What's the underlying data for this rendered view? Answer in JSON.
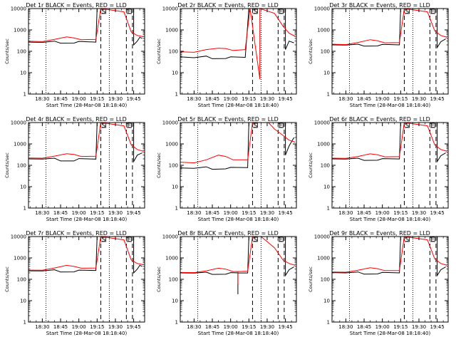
{
  "chart_data": {
    "type": "line",
    "scale": "log",
    "ylim": [
      1,
      10000
    ],
    "ytick_labels": [
      "1",
      "10",
      "100",
      "1000",
      "10000"
    ],
    "xtick_labels": [
      "18:30",
      "18:45",
      "19:00",
      "19:15",
      "19:30",
      "19:45"
    ],
    "xtick_labels_alt": [
      "18:30",
      "18:45",
      "19:00",
      "19:15",
      "19:30",
      "19:45"
    ],
    "xtick_values": [
      30,
      45,
      60,
      75,
      90,
      105
    ],
    "xlim": [
      18.67,
      114
    ],
    "grid": false,
    "series_colors": [
      "#000000",
      "#ff0000"
    ],
    "panels": [
      {
        "title": "Det 1r BLACK = Events, RED = LLD",
        "xlabel": "Start Time (28-Mar-08 18:18:40)",
        "ylabel": "Counts/sec",
        "dotted_x": [
          33,
          85
        ],
        "dashed_x": [
          78,
          99,
          104
        ],
        "flag_labels": [
          "S",
          "E"
        ],
        "black": [
          [
            18.67,
            270
          ],
          [
            30,
            262
          ],
          [
            40,
            300
          ],
          [
            45,
            240
          ],
          [
            56,
            242
          ],
          [
            60,
            290
          ],
          [
            74,
            270
          ],
          [
            75,
            10000
          ],
          [
            105,
            10000
          ],
          [
            105,
            200
          ],
          [
            108,
            300
          ],
          [
            110,
            450
          ],
          [
            112,
            400
          ]
        ],
        "red": [
          [
            18.67,
            295
          ],
          [
            30,
            285
          ],
          [
            40,
            360
          ],
          [
            50,
            470
          ],
          [
            56,
            420
          ],
          [
            62,
            350
          ],
          [
            74,
            360
          ],
          [
            78,
            10000
          ],
          [
            97,
            7000
          ],
          [
            103,
            800
          ],
          [
            108,
            550
          ],
          [
            113,
            480
          ]
        ]
      },
      {
        "title": "Det 2r BLACK = Events, RED = LLD",
        "xlabel": "Start Time (28-Mar-08 18:18:40)",
        "ylabel": "Counts/sec",
        "dotted_x": [
          33,
          85
        ],
        "dashed_x": [
          78,
          99,
          104
        ],
        "flag_labels": [
          "S",
          "E"
        ],
        "black": [
          [
            18.67,
            55
          ],
          [
            30,
            50
          ],
          [
            40,
            60
          ],
          [
            45,
            45
          ],
          [
            56,
            46
          ],
          [
            60,
            55
          ],
          [
            72,
            52
          ],
          [
            75,
            10000
          ],
          [
            105,
            10000
          ],
          [
            105,
            120
          ],
          [
            108,
            300
          ],
          [
            112,
            250
          ]
        ],
        "red": [
          [
            18.67,
            95
          ],
          [
            30,
            90
          ],
          [
            40,
            120
          ],
          [
            50,
            140
          ],
          [
            56,
            135
          ],
          [
            62,
            110
          ],
          [
            72,
            120
          ],
          [
            76,
            10000
          ],
          [
            84,
            5
          ],
          [
            84,
            10000
          ],
          [
            96,
            6000
          ],
          [
            103,
            1500
          ],
          [
            108,
            700
          ],
          [
            113,
            500
          ]
        ]
      },
      {
        "title": "Det 3r BLACK = Events, RED = LLD",
        "xlabel": "Start Time (28-Mar-08 18:18:40)",
        "ylabel": "Counts/sec",
        "dotted_x": [
          33,
          85
        ],
        "dashed_x": [
          78,
          99,
          104
        ],
        "flag_labels": [
          "S",
          "E"
        ],
        "black": [
          [
            18.67,
            200
          ],
          [
            30,
            195
          ],
          [
            40,
            215
          ],
          [
            45,
            175
          ],
          [
            56,
            178
          ],
          [
            60,
            210
          ],
          [
            74,
            200
          ],
          [
            75,
            10000
          ],
          [
            105,
            10000
          ],
          [
            105,
            150
          ],
          [
            108,
            280
          ],
          [
            112,
            380
          ]
        ],
        "red": [
          [
            18.67,
            215
          ],
          [
            30,
            205
          ],
          [
            40,
            260
          ],
          [
            50,
            350
          ],
          [
            56,
            310
          ],
          [
            62,
            250
          ],
          [
            74,
            255
          ],
          [
            78,
            10000
          ],
          [
            97,
            7000
          ],
          [
            103,
            900
          ],
          [
            108,
            550
          ],
          [
            113,
            450
          ]
        ]
      },
      {
        "title": "Det 4r BLACK = Events, RED = LLD",
        "xlabel": "Start Time (28-Mar-08 18:18:40)",
        "ylabel": "Counts/sec",
        "dotted_x": [
          33,
          85
        ],
        "dashed_x": [
          78,
          99,
          104
        ],
        "flag_labels": [
          "S",
          "E"
        ],
        "black": [
          [
            18.67,
            200
          ],
          [
            30,
            195
          ],
          [
            40,
            215
          ],
          [
            45,
            160
          ],
          [
            56,
            160
          ],
          [
            60,
            205
          ],
          [
            74,
            195
          ],
          [
            75,
            10000
          ],
          [
            105,
            10000
          ],
          [
            105,
            150
          ],
          [
            108,
            300
          ],
          [
            112,
            380
          ]
        ],
        "red": [
          [
            18.67,
            220
          ],
          [
            30,
            215
          ],
          [
            40,
            270
          ],
          [
            50,
            350
          ],
          [
            56,
            320
          ],
          [
            62,
            260
          ],
          [
            74,
            265
          ],
          [
            78,
            10000
          ],
          [
            97,
            7000
          ],
          [
            103,
            900
          ],
          [
            108,
            550
          ],
          [
            113,
            450
          ]
        ]
      },
      {
        "title": "Det 5r BLACK = Events, RED = LLD",
        "xlabel": "Start Time (28-Mar-08 18:18:40)",
        "ylabel": "Counts/sec",
        "dotted_x": [
          33,
          85
        ],
        "dashed_x": [
          78,
          99,
          104
        ],
        "flag_labels": [
          "S",
          "E"
        ],
        "black": [
          [
            18.67,
            75
          ],
          [
            30,
            72
          ],
          [
            40,
            85
          ],
          [
            45,
            65
          ],
          [
            56,
            68
          ],
          [
            60,
            80
          ],
          [
            74,
            78
          ],
          [
            75,
            10000
          ],
          [
            105,
            10000
          ],
          [
            105,
            300
          ],
          [
            108,
            800
          ],
          [
            112,
            2000
          ]
        ],
        "red": [
          [
            18.67,
            140
          ],
          [
            30,
            130
          ],
          [
            40,
            180
          ],
          [
            50,
            300
          ],
          [
            56,
            260
          ],
          [
            62,
            180
          ],
          [
            74,
            180
          ],
          [
            78,
            10000
          ],
          [
            91,
            10000
          ],
          [
            96,
            5000
          ],
          [
            103,
            2500
          ],
          [
            108,
            1500
          ],
          [
            113,
            1200
          ]
        ]
      },
      {
        "title": "Det 6r BLACK = Events, RED = LLD",
        "xlabel": "Start Time (28-Mar-08 18:18:40)",
        "ylabel": "Counts/sec",
        "dotted_x": [
          33,
          85
        ],
        "dashed_x": [
          78,
          99,
          104
        ],
        "flag_labels": [
          "S",
          "E"
        ],
        "black": [
          [
            18.67,
            200
          ],
          [
            30,
            195
          ],
          [
            40,
            215
          ],
          [
            45,
            170
          ],
          [
            56,
            172
          ],
          [
            60,
            205
          ],
          [
            74,
            198
          ],
          [
            75,
            10000
          ],
          [
            105,
            10000
          ],
          [
            105,
            150
          ],
          [
            108,
            280
          ],
          [
            112,
            380
          ]
        ],
        "red": [
          [
            18.67,
            215
          ],
          [
            30,
            210
          ],
          [
            40,
            260
          ],
          [
            50,
            345
          ],
          [
            56,
            310
          ],
          [
            62,
            250
          ],
          [
            74,
            255
          ],
          [
            78,
            10000
          ],
          [
            97,
            7000
          ],
          [
            103,
            900
          ],
          [
            108,
            550
          ],
          [
            113,
            450
          ]
        ]
      },
      {
        "title": "Det 7r BLACK = Events, RED = LLD",
        "xlabel": "Start Time (28-Mar-08 18:18:40)",
        "ylabel": "Counts/sec",
        "dotted_x": [
          33,
          85
        ],
        "dashed_x": [
          78,
          99,
          104
        ],
        "flag_labels": [
          "S",
          "E"
        ],
        "black": [
          [
            18.67,
            250
          ],
          [
            30,
            245
          ],
          [
            40,
            280
          ],
          [
            45,
            220
          ],
          [
            56,
            222
          ],
          [
            60,
            270
          ],
          [
            74,
            260
          ],
          [
            75,
            10000
          ],
          [
            105,
            10000
          ],
          [
            105,
            200
          ],
          [
            108,
            300
          ],
          [
            110,
            450
          ],
          [
            112,
            400
          ]
        ],
        "red": [
          [
            18.67,
            270
          ],
          [
            30,
            265
          ],
          [
            40,
            340
          ],
          [
            50,
            450
          ],
          [
            56,
            400
          ],
          [
            62,
            330
          ],
          [
            74,
            340
          ],
          [
            78,
            10000
          ],
          [
            97,
            7000
          ],
          [
            103,
            800
          ],
          [
            108,
            550
          ],
          [
            113,
            480
          ]
        ]
      },
      {
        "title": "Det 8r BLACK = Events, RED = LLD",
        "xlabel": "Start Time (28-Mar-08 18:18:40)",
        "ylabel": "Counts/sec",
        "dotted_x": [
          33,
          85
        ],
        "dashed_x": [
          78,
          99,
          104
        ],
        "flag_labels": [
          "S",
          "E"
        ],
        "black": [
          [
            18.67,
            200
          ],
          [
            30,
            195
          ],
          [
            40,
            215
          ],
          [
            45,
            170
          ],
          [
            56,
            172
          ],
          [
            60,
            205
          ],
          [
            66,
            200
          ],
          [
            66,
            20
          ],
          [
            66,
            200
          ],
          [
            74,
            198
          ],
          [
            75,
            10000
          ],
          [
            105,
            10000
          ],
          [
            105,
            150
          ],
          [
            108,
            280
          ],
          [
            112,
            380
          ]
        ],
        "red": [
          [
            18.67,
            210
          ],
          [
            30,
            205
          ],
          [
            40,
            250
          ],
          [
            50,
            330
          ],
          [
            56,
            300
          ],
          [
            62,
            230
          ],
          [
            66,
            230
          ],
          [
            66,
            60
          ],
          [
            66,
            230
          ],
          [
            74,
            240
          ],
          [
            78,
            10000
          ],
          [
            85,
            10000
          ],
          [
            96,
            3000
          ],
          [
            103,
            800
          ],
          [
            108,
            550
          ],
          [
            113,
            450
          ]
        ]
      },
      {
        "title": "Det 9r BLACK = Events, RED = LLD",
        "xlabel": "Start Time (28-Mar-08 18:18:40)",
        "ylabel": "Counts/sec",
        "dotted_x": [
          33,
          85
        ],
        "dashed_x": [
          78,
          99,
          104
        ],
        "flag_labels": [
          "S",
          "E"
        ],
        "black": [
          [
            18.67,
            205
          ],
          [
            30,
            200
          ],
          [
            40,
            220
          ],
          [
            45,
            175
          ],
          [
            56,
            178
          ],
          [
            60,
            210
          ],
          [
            74,
            200
          ],
          [
            75,
            10000
          ],
          [
            105,
            10000
          ],
          [
            105,
            150
          ],
          [
            108,
            280
          ],
          [
            112,
            380
          ]
        ],
        "red": [
          [
            18.67,
            220
          ],
          [
            30,
            215
          ],
          [
            40,
            265
          ],
          [
            50,
            350
          ],
          [
            56,
            315
          ],
          [
            62,
            255
          ],
          [
            74,
            260
          ],
          [
            78,
            10000
          ],
          [
            97,
            7000
          ],
          [
            103,
            900
          ],
          [
            108,
            550
          ],
          [
            113,
            450
          ]
        ]
      }
    ]
  }
}
